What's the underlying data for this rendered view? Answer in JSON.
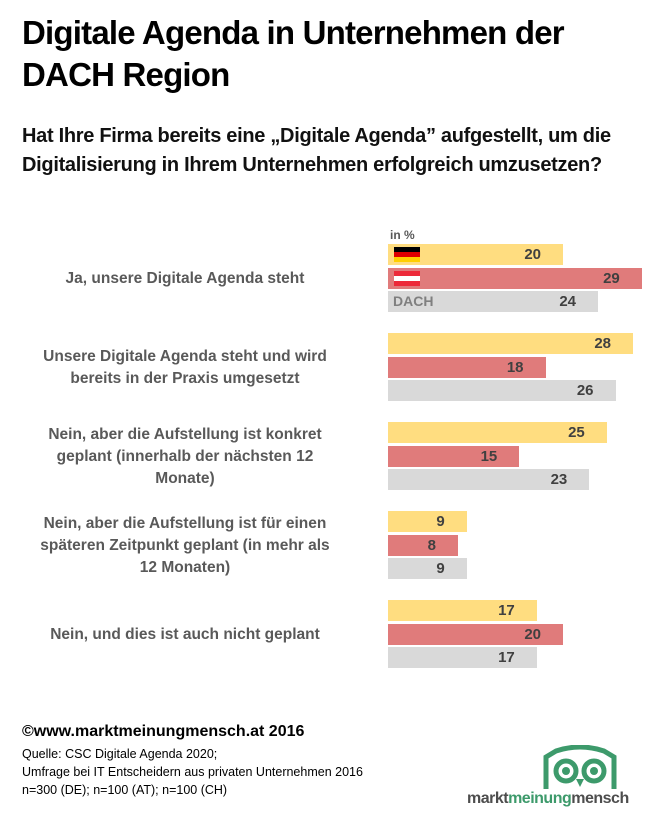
{
  "header": {
    "title": "Digitale Agenda in Unternehmen der DACH Region",
    "question": "Hat Ihre Firma bereits eine „Digitale Agenda” aufgestellt, um die Digitalisierung in Ihrem Unternehmen erfolgreich umzusetzen?"
  },
  "chart_data": {
    "type": "bar",
    "orientation": "horizontal",
    "title": "Digitale Agenda in Unternehmen der DACH Region",
    "unit_label": "in %",
    "categories": [
      "Ja, unsere Digitale Agenda steht",
      "Unsere Digitale Agenda steht und wird bereits in der Praxis umgesetzt",
      "Nein, aber die Aufstellung ist konkret geplant (innerhalb der nächsten 12 Monate)",
      "Nein, aber die Aufstellung ist für einen späteren Zeitpunkt geplant (in mehr als 12 Monaten)",
      "Nein, und dies ist auch nicht geplant"
    ],
    "category_lines": [
      [
        "Ja, unsere Digitale Agenda steht"
      ],
      [
        "Unsere Digitale Agenda steht und wird",
        "bereits in der Praxis umgesetzt"
      ],
      [
        "Nein, aber die Aufstellung ist konkret",
        "geplant (innerhalb der nächsten 12",
        "Monate)"
      ],
      [
        "Nein, aber die Aufstellung ist für einen",
        "späteren Zeitpunkt geplant (in mehr als",
        "12 Monaten)"
      ],
      [
        "Nein, und dies ist auch nicht geplant"
      ]
    ],
    "series": [
      {
        "name": "Deutschland",
        "legend": "de-flag",
        "color": "#ffdd80",
        "values": [
          20,
          28,
          25,
          9,
          17
        ]
      },
      {
        "name": "Österreich",
        "legend": "at-flag",
        "color": "#e07b7b",
        "values": [
          29,
          18,
          15,
          8,
          20
        ]
      },
      {
        "name": "DACH",
        "legend": "DACH",
        "color": "#d9d9d9",
        "values": [
          24,
          26,
          23,
          9,
          17
        ]
      }
    ],
    "xlim": [
      0,
      30
    ],
    "grid": false,
    "legend": "inline-first-group"
  },
  "footer": {
    "copyright": "©www.marktmeinungmensch.at 2016",
    "source_lines": [
      "Quelle: CSC Digitale Agenda 2020;",
      "Umfrage bei IT Entscheidern aus privaten Unternehmen 2016",
      "n=300 (DE); n=100 (AT); n=100 (CH)"
    ]
  },
  "logo": {
    "part1": "markt",
    "part2": "meinung",
    "part3": "mensch",
    "green": "#3d9a6b",
    "grey": "#4d4d4d"
  }
}
